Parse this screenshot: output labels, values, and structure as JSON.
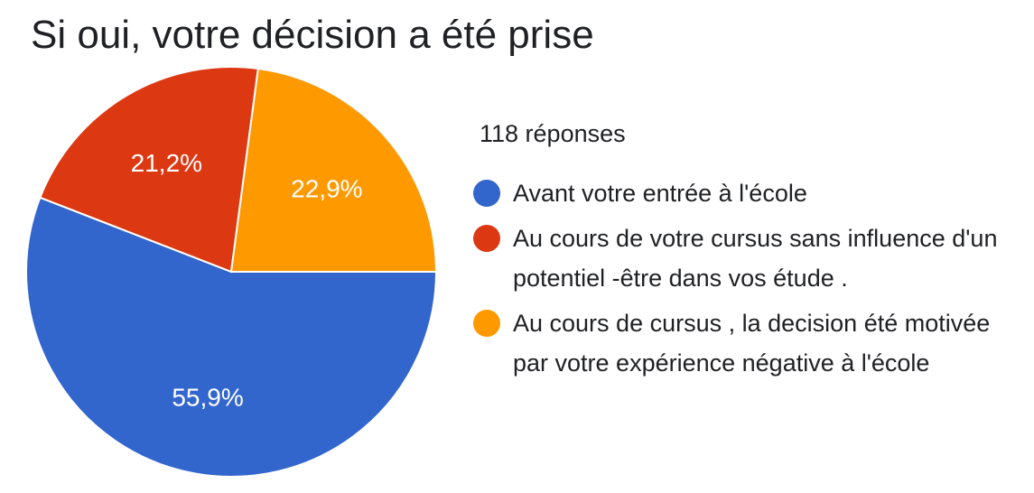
{
  "chart_data": {
    "type": "pie",
    "title": "Si oui, votre décision a été prise",
    "responses_label": "118 réponses",
    "legend_placement": "right",
    "slices": [
      {
        "label": "Avant votre entrée à l'école",
        "value": 55.9,
        "value_label": "55,9%",
        "color": "#3366cc"
      },
      {
        "label": "Au cours de votre cursus sans influence d'un potentiel -être dans vos étude .",
        "value": 21.2,
        "value_label": "21,2%",
        "color": "#dc3912"
      },
      {
        "label": "Au cours de cursus , la decision été motivée par votre expérience négative à l'école",
        "value": 22.9,
        "value_label": "22,9%",
        "color": "#ff9900"
      }
    ]
  }
}
